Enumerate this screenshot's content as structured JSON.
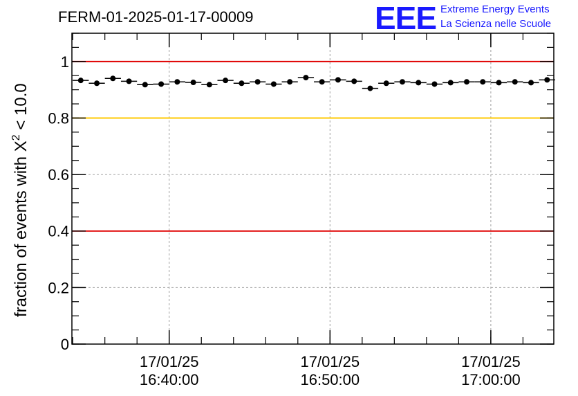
{
  "header": {
    "title": "FERM-01-2025-01-17-00009",
    "logo_mark": "EEE",
    "logo_line1": "Extreme Energy Events",
    "logo_line2": "La Scienza nelle Scuole"
  },
  "colors": {
    "points": "#000000",
    "red_ref": "#e00000",
    "yellow_ref": "#ffc800",
    "logo": "#1a1aff",
    "grid": "#a0a0a0"
  },
  "chart_data": {
    "type": "scatter",
    "ylabel_main": "fraction of events with X",
    "ylabel_sup": "2",
    "ylabel_tail": " < 10.0",
    "ylim": [
      0,
      1.1
    ],
    "yticks": [
      {
        "value": 0,
        "label": "0"
      },
      {
        "value": 0.2,
        "label": "0.2"
      },
      {
        "value": 0.4,
        "label": "0.4"
      },
      {
        "value": 0.6,
        "label": "0.6"
      },
      {
        "value": 0.8,
        "label": "0.8"
      },
      {
        "value": 1,
        "label": "1"
      }
    ],
    "xlim": [
      "16:33:57",
      "17:03:55"
    ],
    "xticks": [
      {
        "time": "16:40:00",
        "date": "17/01/25",
        "label": "16:40:00"
      },
      {
        "time": "16:50:00",
        "date": "17/01/25",
        "label": "16:50:00"
      },
      {
        "time": "17:00:00",
        "date": "17/01/25",
        "label": "17:00:00"
      }
    ],
    "grid": true,
    "reference_lines": [
      {
        "value": 1.0,
        "color": "#e00000"
      },
      {
        "value": 0.8,
        "color": "#ffc800"
      },
      {
        "value": 0.4,
        "color": "#e00000"
      }
    ],
    "series": [
      {
        "x": [
          "16:34:30",
          "16:35:30",
          "16:36:30",
          "16:37:30",
          "16:38:30",
          "16:39:30",
          "16:40:30",
          "16:41:30",
          "16:42:30",
          "16:43:30",
          "16:44:30",
          "16:45:30",
          "16:46:30",
          "16:47:30",
          "16:48:30",
          "16:49:30",
          "16:50:30",
          "16:51:30",
          "16:52:30",
          "16:53:30",
          "16:54:30",
          "16:55:30",
          "16:56:30",
          "16:57:30",
          "16:58:30",
          "16:59:30",
          "17:00:30",
          "17:01:30",
          "17:02:30",
          "17:03:30"
        ],
        "y": [
          0.933,
          0.923,
          0.94,
          0.93,
          0.918,
          0.92,
          0.928,
          0.926,
          0.918,
          0.933,
          0.923,
          0.928,
          0.92,
          0.928,
          0.943,
          0.928,
          0.935,
          0.93,
          0.905,
          0.923,
          0.928,
          0.925,
          0.92,
          0.925,
          0.928,
          0.928,
          0.925,
          0.928,
          0.925,
          0.935
        ]
      }
    ]
  }
}
